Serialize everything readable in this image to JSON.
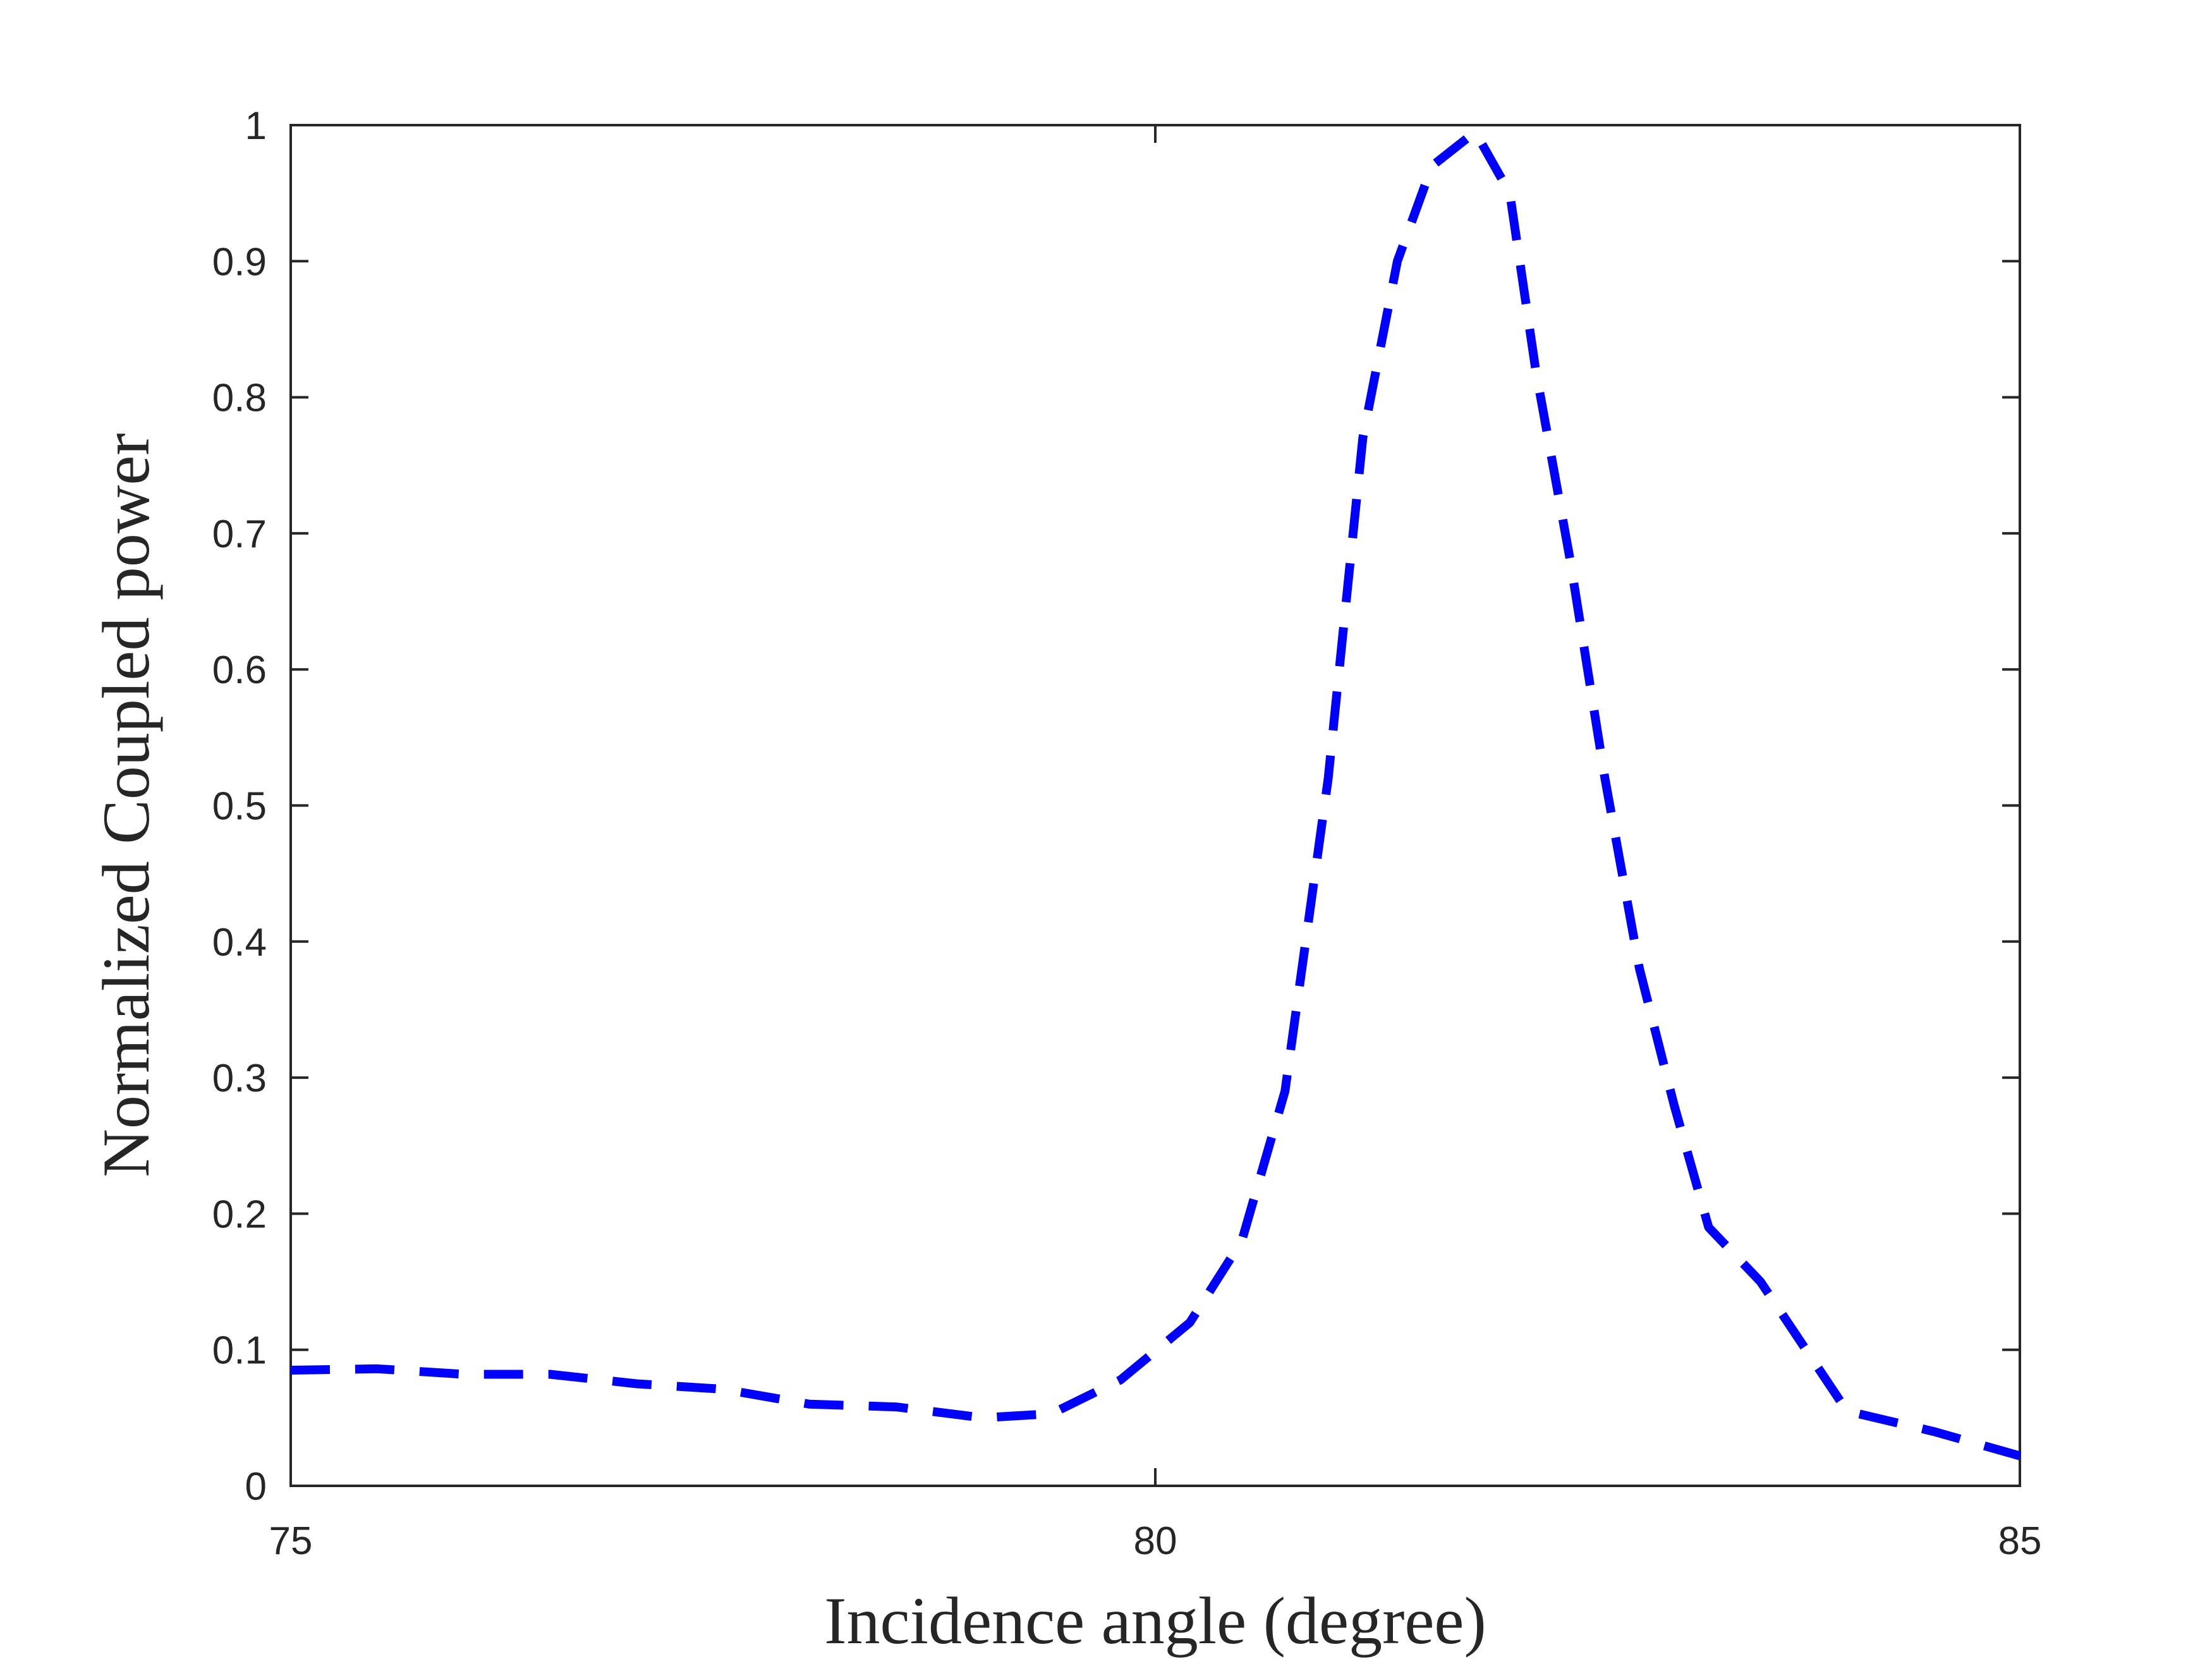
{
  "chart_data": {
    "type": "line",
    "title": "",
    "xlabel": "Incidence angle (degree)",
    "ylabel": "Normalized Coupled power",
    "xlim": [
      75,
      85
    ],
    "ylim": [
      0,
      1
    ],
    "xticks": [
      75,
      80,
      85
    ],
    "xtick_labels": [
      "75",
      "80",
      "85"
    ],
    "yticks": [
      0,
      0.1,
      0.2,
      0.3,
      0.4,
      0.5,
      0.6,
      0.7,
      0.8,
      0.9,
      1
    ],
    "ytick_labels": [
      "0",
      "0.1",
      "0.2",
      "0.3",
      "0.4",
      "0.5",
      "0.6",
      "0.7",
      "0.8",
      "0.9",
      "1"
    ],
    "grid": false,
    "legend": "none",
    "series": [
      {
        "color": "#0000ff",
        "line_style": "dashed",
        "x": [
          75.0,
          75.5,
          76.0,
          76.5,
          77.0,
          77.5,
          78.0,
          78.5,
          79.0,
          79.4,
          79.8,
          80.2,
          80.5,
          80.75,
          81.0,
          81.2,
          81.4,
          81.6,
          81.85,
          82.05,
          82.2,
          82.4,
          82.6,
          82.8,
          83.0,
          83.2,
          83.5,
          84.0,
          84.5,
          85.0
        ],
        "y": [
          0.085,
          0.086,
          0.082,
          0.082,
          0.075,
          0.071,
          0.06,
          0.058,
          0.05,
          0.053,
          0.078,
          0.12,
          0.18,
          0.29,
          0.52,
          0.77,
          0.9,
          0.97,
          0.995,
          0.95,
          0.82,
          0.68,
          0.52,
          0.38,
          0.28,
          0.19,
          0.15,
          0.055,
          0.04,
          0.022
        ]
      }
    ]
  }
}
